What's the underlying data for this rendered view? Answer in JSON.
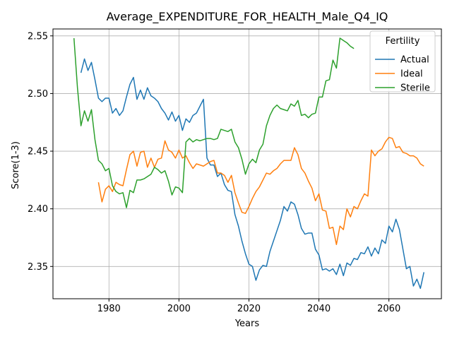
{
  "chart_data": {
    "type": "line",
    "title": "Average_EXPENDITURE_FOR_HEALTH_Male_Q4_IQ",
    "xlabel": "Years",
    "ylabel": "Score(1-3)",
    "xlim": [
      1964,
      2075
    ],
    "ylim": [
      2.322,
      2.556
    ],
    "xticks": [
      1980,
      2000,
      2020,
      2040,
      2060
    ],
    "yticks": [
      2.35,
      2.4,
      2.45,
      2.5,
      2.55
    ],
    "ytick_labels": [
      "2.35",
      "2.40",
      "2.45",
      "2.50",
      "2.55"
    ],
    "grid": true,
    "legend": {
      "title": "Fertility",
      "placement": "top-right"
    },
    "series": [
      {
        "name": "Actual",
        "color": "#1f77b4",
        "x": [
          1972,
          1973,
          1974,
          1975,
          1976,
          1977,
          1978,
          1979,
          1980,
          1981,
          1982,
          1983,
          1984,
          1985,
          1986,
          1987,
          1988,
          1989,
          1990,
          1991,
          1992,
          1993,
          1994,
          1995,
          1996,
          1997,
          1998,
          1999,
          2000,
          2001,
          2002,
          2003,
          2004,
          2005,
          2006,
          2007,
          2008,
          2009,
          2010,
          2011,
          2012,
          2013,
          2014,
          2015,
          2016,
          2017,
          2018,
          2019,
          2020,
          2021,
          2022,
          2023,
          2024,
          2025,
          2026,
          2027,
          2028,
          2029,
          2030,
          2031,
          2032,
          2033,
          2034,
          2035,
          2036,
          2037,
          2038,
          2039,
          2040,
          2041,
          2042,
          2043,
          2044,
          2045,
          2046,
          2047,
          2048,
          2049,
          2050,
          2051,
          2052,
          2053,
          2054,
          2055,
          2056,
          2057,
          2058,
          2059,
          2060,
          2061,
          2062,
          2063,
          2064,
          2065,
          2066,
          2067,
          2068,
          2069,
          2070
        ],
        "values": [
          2.518,
          2.53,
          2.52,
          2.527,
          2.512,
          2.496,
          2.493,
          2.496,
          2.496,
          2.483,
          2.487,
          2.481,
          2.485,
          2.497,
          2.508,
          2.514,
          2.495,
          2.503,
          2.495,
          2.505,
          2.498,
          2.496,
          2.493,
          2.487,
          2.483,
          2.477,
          2.484,
          2.476,
          2.481,
          2.468,
          2.478,
          2.475,
          2.481,
          2.483,
          2.489,
          2.495,
          2.444,
          2.438,
          2.438,
          2.428,
          2.431,
          2.421,
          2.416,
          2.415,
          2.395,
          2.385,
          2.372,
          2.361,
          2.352,
          2.35,
          2.338,
          2.347,
          2.351,
          2.35,
          2.363,
          2.372,
          2.381,
          2.39,
          2.402,
          2.398,
          2.406,
          2.404,
          2.395,
          2.383,
          2.378,
          2.379,
          2.379,
          2.365,
          2.36,
          2.347,
          2.348,
          2.346,
          2.348,
          2.343,
          2.352,
          2.342,
          2.353,
          2.351,
          2.357,
          2.356,
          2.362,
          2.361,
          2.367,
          2.359,
          2.366,
          2.361,
          2.373,
          2.37,
          2.385,
          2.38,
          2.391,
          2.382,
          2.365,
          2.348,
          2.35,
          2.333,
          2.339,
          2.331,
          2.345
        ]
      },
      {
        "name": "Ideal",
        "color": "#ff7f0e",
        "x": [
          1977,
          1978,
          1979,
          1980,
          1981,
          1982,
          1983,
          1984,
          1985,
          1986,
          1987,
          1988,
          1989,
          1990,
          1991,
          1992,
          1993,
          1994,
          1995,
          1996,
          1997,
          1998,
          1999,
          2000,
          2001,
          2002,
          2003,
          2004,
          2005,
          2006,
          2007,
          2008,
          2009,
          2010,
          2011,
          2012,
          2013,
          2014,
          2015,
          2016,
          2017,
          2018,
          2019,
          2020,
          2021,
          2022,
          2023,
          2024,
          2025,
          2026,
          2027,
          2028,
          2029,
          2030,
          2031,
          2032,
          2033,
          2034,
          2035,
          2036,
          2037,
          2038,
          2039,
          2040,
          2041,
          2042,
          2043,
          2044,
          2045,
          2046,
          2047,
          2048,
          2049,
          2050,
          2051,
          2052,
          2053,
          2054,
          2055,
          2056,
          2057,
          2058,
          2059,
          2060,
          2061,
          2062,
          2063,
          2064,
          2065,
          2066,
          2067,
          2068,
          2069,
          2070
        ],
        "values": [
          2.423,
          2.406,
          2.417,
          2.42,
          2.415,
          2.423,
          2.421,
          2.42,
          2.434,
          2.447,
          2.45,
          2.437,
          2.449,
          2.45,
          2.436,
          2.444,
          2.436,
          2.443,
          2.444,
          2.459,
          2.451,
          2.449,
          2.444,
          2.451,
          2.444,
          2.446,
          2.44,
          2.435,
          2.439,
          2.438,
          2.437,
          2.439,
          2.441,
          2.442,
          2.431,
          2.431,
          2.429,
          2.423,
          2.429,
          2.414,
          2.405,
          2.397,
          2.396,
          2.402,
          2.409,
          2.415,
          2.419,
          2.425,
          2.431,
          2.43,
          2.433,
          2.435,
          2.439,
          2.442,
          2.442,
          2.442,
          2.453,
          2.447,
          2.435,
          2.431,
          2.424,
          2.418,
          2.407,
          2.413,
          2.399,
          2.398,
          2.383,
          2.384,
          2.369,
          2.385,
          2.382,
          2.4,
          2.393,
          2.402,
          2.4,
          2.407,
          2.413,
          2.411,
          2.451,
          2.446,
          2.45,
          2.452,
          2.458,
          2.462,
          2.461,
          2.453,
          2.454,
          2.449,
          2.448,
          2.446,
          2.446,
          2.444,
          2.439,
          2.437
        ]
      },
      {
        "name": "Sterile",
        "color": "#2ca02c",
        "x": [
          1970,
          1971,
          1972,
          1973,
          1974,
          1975,
          1976,
          1977,
          1978,
          1979,
          1980,
          1981,
          1982,
          1983,
          1984,
          1985,
          1986,
          1987,
          1988,
          1989,
          1990,
          1991,
          1992,
          1993,
          1994,
          1995,
          1996,
          1997,
          1998,
          1999,
          2000,
          2001,
          2002,
          2003,
          2004,
          2005,
          2006,
          2007,
          2008,
          2009,
          2010,
          2011,
          2012,
          2013,
          2014,
          2015,
          2016,
          2017,
          2018,
          2019,
          2020,
          2021,
          2022,
          2023,
          2024,
          2025,
          2026,
          2027,
          2028,
          2029,
          2030,
          2031,
          2032,
          2033,
          2034,
          2035,
          2036,
          2037,
          2038,
          2039,
          2040,
          2041,
          2042,
          2043,
          2044,
          2045,
          2046,
          2047,
          2048,
          2049,
          2050
        ],
        "values": [
          2.548,
          2.505,
          2.472,
          2.485,
          2.476,
          2.486,
          2.46,
          2.442,
          2.439,
          2.433,
          2.435,
          2.42,
          2.415,
          2.413,
          2.414,
          2.401,
          2.416,
          2.414,
          2.425,
          2.425,
          2.426,
          2.428,
          2.43,
          2.436,
          2.434,
          2.431,
          2.433,
          2.424,
          2.412,
          2.419,
          2.418,
          2.414,
          2.458,
          2.461,
          2.458,
          2.46,
          2.459,
          2.46,
          2.461,
          2.461,
          2.46,
          2.461,
          2.469,
          2.468,
          2.467,
          2.469,
          2.458,
          2.453,
          2.443,
          2.43,
          2.439,
          2.443,
          2.44,
          2.451,
          2.456,
          2.472,
          2.481,
          2.487,
          2.49,
          2.487,
          2.486,
          2.485,
          2.491,
          2.489,
          2.494,
          2.481,
          2.482,
          2.479,
          2.482,
          2.483,
          2.497,
          2.497,
          2.511,
          2.512,
          2.529,
          2.522,
          2.548,
          2.546,
          2.544,
          2.541,
          2.539
        ]
      }
    ]
  }
}
